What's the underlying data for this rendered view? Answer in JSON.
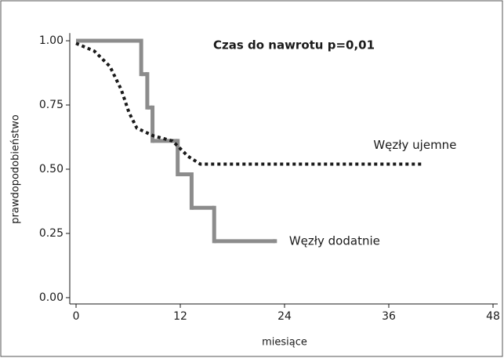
{
  "chart_data": {
    "type": "line",
    "title": "Czas do nawrotu p=0,01",
    "xlabel": "miesiące",
    "ylabel": "prawdopodobieństwo",
    "xlim": [
      -1.5,
      48
    ],
    "ylim": [
      -0.03,
      1.03
    ],
    "xticks": [
      0,
      12,
      24,
      36,
      48
    ],
    "yticks": [
      {
        "value": 0,
        "label": "0.00"
      },
      {
        "value": 0.25,
        "label": "0.25"
      },
      {
        "value": 0.5,
        "label": "0.50"
      },
      {
        "value": 0.75,
        "label": "0.75"
      },
      {
        "value": 1,
        "label": "1.00"
      }
    ],
    "series": [
      {
        "name": "Węzły dodatnie",
        "color": "#8c8c8c",
        "step": true,
        "dash": "solid",
        "x": [
          0,
          7.5,
          8.2,
          8.8,
          11.7,
          13.3,
          15.9,
          22.9
        ],
        "values": [
          1.0,
          0.87,
          0.74,
          0.61,
          0.48,
          0.35,
          0.22,
          0.22
        ]
      },
      {
        "name": "Węzły ujemne",
        "color": "#1a1a1a",
        "step": false,
        "dash": "dotted",
        "x": [
          0,
          2.1,
          3.9,
          5.2,
          6.1,
          7.0,
          8.9,
          11.1,
          12.9,
          14.3,
          40
        ],
        "values": [
          0.99,
          0.96,
          0.9,
          0.81,
          0.72,
          0.66,
          0.63,
          0.61,
          0.55,
          0.52,
          0.52
        ]
      }
    ]
  }
}
